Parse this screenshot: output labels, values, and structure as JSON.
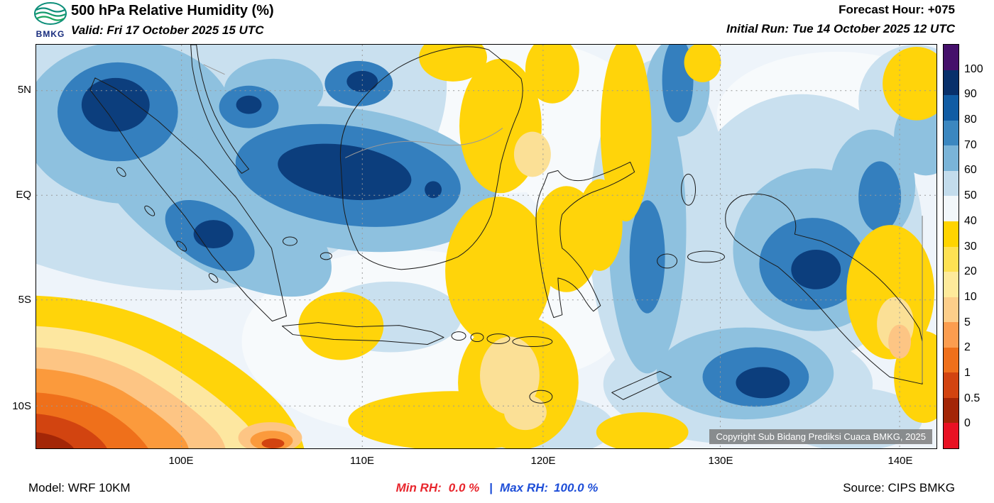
{
  "header": {
    "logo_text": "BMKG",
    "title": "500 hPa Relative Humidity (%)",
    "valid": "Valid: Fri 17 October 2025 15 UTC",
    "forecast_hour": "Forecast Hour: +075",
    "initial_run": "Initial Run: Tue 14 October 2025 12 UTC"
  },
  "map": {
    "y_ticks": [
      "5N",
      "EQ",
      "5S",
      "10S"
    ],
    "x_ticks": [
      "100E",
      "110E",
      "120E",
      "130E",
      "140E"
    ],
    "copyright": "Copyright Sub Bidang Prediksi Cuaca BMKG, 2025"
  },
  "colorbar": {
    "unit": "%",
    "labels": [
      "100",
      "90",
      "80",
      "70",
      "60",
      "50",
      "40",
      "30",
      "20",
      "10",
      "5",
      "2",
      "1",
      "0.5",
      "0"
    ],
    "colors": [
      "#45106b",
      "#08306b",
      "#105ca4",
      "#3b87c0",
      "#7ab4d8",
      "#c3dcec",
      "#f2f7fa",
      "#ffd400",
      "#fee153",
      "#feea9b",
      "#fdce8a",
      "#fc9d4f",
      "#ef701b",
      "#d24410",
      "#a32607",
      "#e81123"
    ]
  },
  "footer": {
    "model": "Model: WRF 10KM",
    "min_label": "Min RH:",
    "min_value": "0.0 %",
    "separator": "|",
    "max_label": "Max RH:",
    "max_value": "100.0 %",
    "source": "Source: CIPS BMKG"
  },
  "accent_colors": {
    "min_rh_text": "#e8262d",
    "max_rh_text": "#1f4fd8",
    "logo_navy": "#162a7c",
    "logo_teal": "#0e8f7a"
  }
}
